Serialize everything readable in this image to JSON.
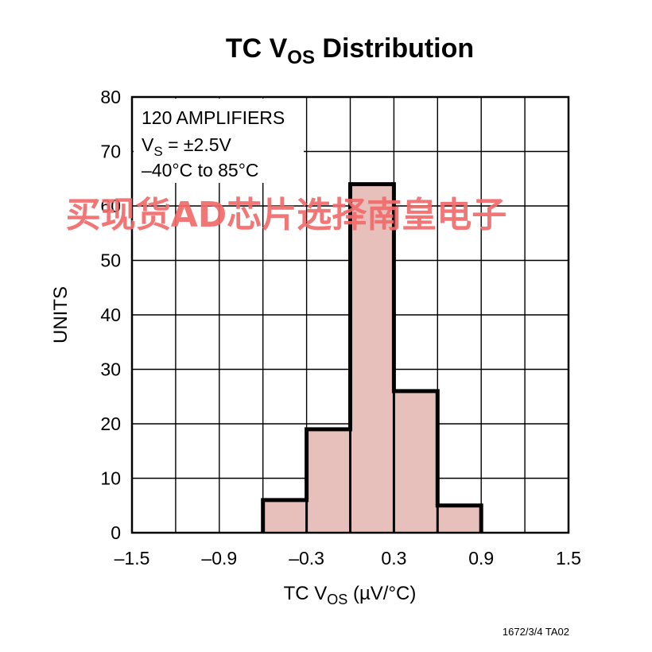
{
  "chart_data": {
    "type": "bar",
    "title": {
      "prefix": "TC V",
      "sub": "OS",
      "suffix": " Distribution"
    },
    "xlabel": {
      "prefix": "TC V",
      "sub": "OS",
      "suffix": " (µV/°C)"
    },
    "ylabel": "UNITS",
    "xlim": [
      -1.5,
      1.5
    ],
    "ylim": [
      0,
      80
    ],
    "x_ticks": [
      -1.5,
      -0.9,
      -0.3,
      0.3,
      0.9,
      1.5
    ],
    "x_tick_labels": [
      "–1.5",
      "–0.9",
      "–0.3",
      "0.3",
      "0.9",
      "1.5"
    ],
    "x_grid": [
      -1.5,
      -1.2,
      -0.9,
      -0.6,
      -0.3,
      0,
      0.3,
      0.6,
      0.9,
      1.2,
      1.5
    ],
    "y_ticks": [
      0,
      10,
      20,
      30,
      40,
      50,
      60,
      70,
      80
    ],
    "y_tick_labels": [
      "0",
      "10",
      "20",
      "30",
      "40",
      "50",
      "60",
      "70",
      "80"
    ],
    "grid": true,
    "bins": [
      {
        "x0": -0.6,
        "x1": -0.3,
        "value": 6
      },
      {
        "x0": -0.3,
        "x1": 0.0,
        "value": 19
      },
      {
        "x0": 0.0,
        "x1": 0.3,
        "value": 64
      },
      {
        "x0": 0.3,
        "x1": 0.6,
        "value": 26
      },
      {
        "x0": 0.6,
        "x1": 0.9,
        "value": 5
      }
    ],
    "annotation": {
      "line1": "120 AMPLIFIERS",
      "line2": {
        "prefix": "V",
        "sub": "S",
        "suffix": " = ±2.5V"
      },
      "line3": "–40°C to 85°C"
    },
    "footer": "1672/3/4 TA02"
  },
  "watermark": "买现货AD芯片选择南皇电子",
  "colors": {
    "bar_fill": "#e8c0bb",
    "outline": "#000000",
    "grid": "#000000",
    "watermark": "#f26b6b"
  }
}
